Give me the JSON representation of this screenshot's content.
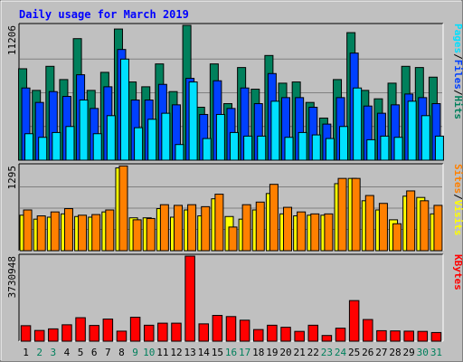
{
  "chart_data": {
    "type": "bar",
    "title": "Daily usage for March 2019",
    "days": [
      "1",
      "2",
      "3",
      "4",
      "5",
      "6",
      "7",
      "8",
      "9",
      "10",
      "11",
      "12",
      "13",
      "14",
      "15",
      "16",
      "17",
      "18",
      "19",
      "20",
      "21",
      "22",
      "23",
      "24",
      "25",
      "26",
      "27",
      "28",
      "29",
      "30",
      "31"
    ],
    "weekend_days": [
      "2",
      "3",
      "9",
      "10",
      "16",
      "17",
      "23",
      "24",
      "30",
      "31"
    ],
    "panels": [
      {
        "id": "hits",
        "ymax_label": "11206",
        "ymax": 11206,
        "grid": true,
        "legend": [
          "Pages",
          "Files",
          "Hits"
        ],
        "series": [
          {
            "name": "Hits",
            "color": "#00805c",
            "values": [
              7600,
              5800,
              7800,
              6700,
              10100,
              5800,
              7300,
              10900,
              6500,
              6100,
              8000,
              5700,
              11206,
              4400,
              8000,
              4700,
              7700,
              5900,
              8700,
              6400,
              6500,
              4800,
              3500,
              6700,
              10600,
              5800,
              5100,
              6400,
              7800,
              7700,
              6900
            ]
          },
          {
            "name": "Files",
            "color": "#0040ff",
            "values": [
              6000,
              4800,
              5700,
              5300,
              7100,
              4300,
              6100,
              9200,
              5000,
              5000,
              6300,
              4600,
              6800,
              3800,
              6600,
              4300,
              6000,
              4700,
              7200,
              5200,
              5200,
              4400,
              3000,
              5200,
              8900,
              4500,
              3900,
              4600,
              5500,
              5200,
              4700
            ]
          },
          {
            "name": "Pages",
            "color": "#00e0ff",
            "values": [
              2200,
              1900,
              2300,
              2800,
              5000,
              2200,
              3700,
              8400,
              2700,
              3400,
              3900,
              1300,
              6500,
              1800,
              3800,
              2300,
              2000,
              2000,
              4900,
              1900,
              2300,
              2100,
              1800,
              2800,
              6000,
              1700,
              2000,
              1900,
              4900,
              3700,
              2000
            ]
          }
        ]
      },
      {
        "id": "visits",
        "ymax_label": "1295",
        "ymax": 1295,
        "grid": true,
        "legend": [
          "Sites",
          "Visits"
        ],
        "series": [
          {
            "name": "Visits",
            "color": "#ffff00",
            "values": [
              540,
              480,
              510,
              560,
              520,
              510,
              590,
              1260,
              500,
              500,
              640,
              510,
              620,
              530,
              790,
              520,
              480,
              620,
              870,
              560,
              530,
              540,
              540,
              1020,
              1100,
              760,
              620,
              470,
              830,
              810,
              560
            ]
          },
          {
            "name": "Sites",
            "color": "#ff8000",
            "values": [
              620,
              530,
              590,
              640,
              540,
              550,
              620,
              1290,
              470,
              490,
              700,
              690,
              700,
              670,
              860,
              360,
              700,
              740,
              1010,
              660,
              590,
              560,
              560,
              1100,
              1100,
              840,
              720,
              410,
              910,
              760,
              690
            ]
          }
        ]
      },
      {
        "id": "kbytes",
        "ymax_label": "3730948",
        "ymax": 3730948,
        "grid": false,
        "legend": [
          "KBytes"
        ],
        "series": [
          {
            "name": "KBytes",
            "color": "#ff0000",
            "values": [
              680000,
              470000,
              540000,
              720000,
              1030000,
              690000,
              970000,
              440000,
              1050000,
              700000,
              790000,
              790000,
              3730948,
              760000,
              1130000,
              1080000,
              920000,
              510000,
              700000,
              610000,
              430000,
              700000,
              250000,
              570000,
              1780000,
              950000,
              460000,
              450000,
              440000,
              430000,
              380000
            ]
          }
        ]
      }
    ]
  },
  "colors": {
    "background": "#c0c0c0",
    "plot_background": "#c0c0c0",
    "title": "#0000ff",
    "weekday_label": "#000000",
    "weekend_label": "#00805c"
  }
}
